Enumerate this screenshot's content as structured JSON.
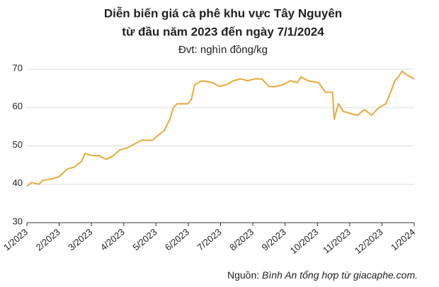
{
  "chart_data": {
    "type": "line",
    "title": [
      "Diễn biến giá cà phê khu vực Tây Nguyên",
      "từ đầu năm 2023 đến ngày 7/1/2024"
    ],
    "subtitle": "Đvt: nghìn đồng/kg",
    "source_label": "Nguồn:",
    "source_text": "Bình An tổng hợp từ giacaphe.com.",
    "x": [
      0,
      0.15,
      0.37,
      0.48,
      0.81,
      1,
      1.25,
      1.47,
      1.69,
      1.8,
      2.02,
      2.24,
      2.46,
      2.68,
      2.89,
      3.11,
      3.33,
      3.55,
      3.88,
      4.1,
      4.25,
      4.43,
      4.54,
      4.65,
      4.98,
      5.09,
      5.2,
      5.42,
      5.75,
      5.96,
      6.18,
      6.4,
      6.62,
      6.84,
      7.06,
      7.28,
      7.5,
      7.72,
      7.94,
      8.16,
      8.38,
      8.49,
      8.71,
      9.04,
      9.25,
      9.47,
      9.52,
      9.65,
      9.8,
      10.02,
      10.24,
      10.46,
      10.68,
      10.9,
      11.12,
      11.27,
      11.4,
      11.51,
      11.62,
      11.78,
      12
    ],
    "series": [
      {
        "name": "Giá cà phê",
        "color": "#e8a93a",
        "values": [
          39.5,
          40.5,
          40,
          41,
          41.5,
          42,
          44,
          44.5,
          46,
          48,
          47.5,
          47.5,
          46.5,
          47.5,
          49,
          49.5,
          50.5,
          51.5,
          51.5,
          53,
          54,
          57,
          60,
          61,
          61,
          62,
          66,
          67,
          66.5,
          65.5,
          66,
          67,
          67.5,
          67,
          67.5,
          67.5,
          65.5,
          65.5,
          66,
          67,
          66.5,
          68,
          67,
          66.5,
          64,
          64,
          57,
          61,
          59,
          58.5,
          58,
          59.5,
          58,
          60,
          61,
          64,
          67,
          68,
          69.5,
          68.5,
          67.5
        ]
      }
    ],
    "xlim": [
      0,
      12
    ],
    "xticks": [
      {
        "value": 0,
        "label": "1/2023"
      },
      {
        "value": 1,
        "label": "2/2023"
      },
      {
        "value": 2,
        "label": "3/2023"
      },
      {
        "value": 3,
        "label": "4/2023"
      },
      {
        "value": 4,
        "label": "5/2023"
      },
      {
        "value": 5,
        "label": "6/2023"
      },
      {
        "value": 6,
        "label": "7/2023"
      },
      {
        "value": 7,
        "label": "8/2023"
      },
      {
        "value": 8,
        "label": "9/2023"
      },
      {
        "value": 9,
        "label": "10/2023"
      },
      {
        "value": 10,
        "label": "11/2023"
      },
      {
        "value": 11,
        "label": "12/2023"
      },
      {
        "value": 12,
        "label": "1/2024"
      }
    ],
    "ylim": [
      30,
      70
    ],
    "yticks": [
      30,
      40,
      50,
      60,
      70
    ],
    "grid": true
  }
}
